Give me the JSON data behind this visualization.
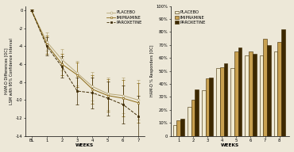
{
  "line_weeks": [
    0,
    1,
    2,
    3,
    4,
    5,
    6,
    7
  ],
  "placebo_mean": [
    0,
    -3.5,
    -5.5,
    -7.0,
    -8.5,
    -9.3,
    -9.5,
    -10.0
  ],
  "imipramine_mean": [
    0,
    -3.8,
    -6.0,
    -7.2,
    -8.8,
    -9.5,
    -9.8,
    -10.3
  ],
  "paroxetine_mean": [
    0,
    -4.0,
    -6.3,
    -9.0,
    -9.2,
    -9.8,
    -10.5,
    -11.8
  ],
  "placebo_err": [
    0.1,
    1.0,
    1.2,
    1.4,
    1.6,
    1.8,
    2.0,
    2.2
  ],
  "imipramine_err": [
    0.1,
    1.0,
    1.2,
    1.4,
    1.6,
    1.8,
    2.0,
    2.2
  ],
  "paroxetine_err": [
    0.1,
    1.0,
    1.2,
    1.5,
    1.7,
    1.9,
    2.1,
    2.3
  ],
  "bar_weeks": [
    1,
    2,
    3,
    4,
    5,
    6,
    7,
    8
  ],
  "placebo_bar": [
    8,
    22,
    35,
    52,
    52,
    62,
    62,
    65
  ],
  "imipramine_bar": [
    12,
    28,
    44,
    53,
    65,
    65,
    75,
    72
  ],
  "paroxetine_bar": [
    13,
    36,
    45,
    56,
    68,
    63,
    70,
    82
  ],
  "line_color_placebo": "#b8a878",
  "line_color_imipramine": "#8b6914",
  "line_color_paroxetine": "#3c2800",
  "bar_color_placebo": "#f0ead0",
  "bar_color_imipramine": "#c8a050",
  "bar_color_paroxetine": "#3c2800",
  "bar_edge_color": "#3c2800",
  "background_color": "#ede8d8",
  "ylim_line": [
    -14,
    0.5
  ],
  "ylim_bar": [
    0,
    100
  ],
  "yticks_line": [
    0,
    -2,
    -4,
    -6,
    -8,
    -10,
    -12,
    -14
  ],
  "yticks_bar_vals": [
    0,
    10,
    20,
    30,
    40,
    50,
    60,
    70,
    80,
    90,
    100
  ],
  "yticks_bar_labels": [
    "0",
    "10%",
    "20%",
    "30%",
    "40%",
    "50%",
    "60%",
    "70%",
    "80%",
    "90%",
    "100%"
  ],
  "xlabel": "WEEKS",
  "ylabel_line1": "HAM-D Differences [OC]",
  "ylabel_line2": "LSM with 95% Confidence Interval",
  "ylabel_bar": "HAM-D % Responders [OC]",
  "legend_labels": [
    "PLACEBO",
    "IMIPRAMINE",
    "PAROXETINE"
  ],
  "label_fontsize": 4.2,
  "tick_fontsize": 3.8,
  "legend_fontsize": 3.8,
  "ylabel_fontsize": 3.5
}
